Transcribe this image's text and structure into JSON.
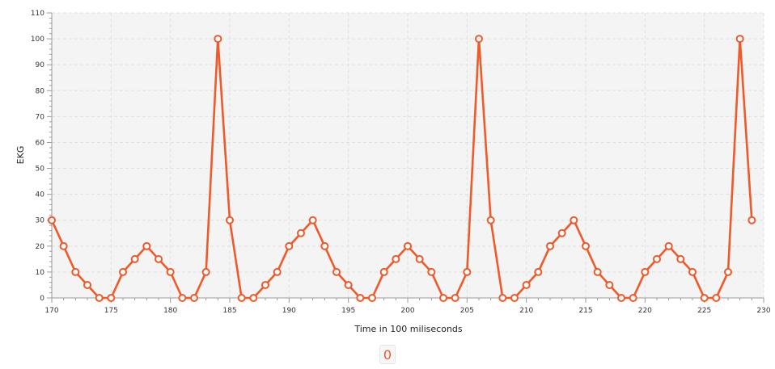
{
  "chart_data": {
    "type": "line",
    "xlabel": "Time in 100 miliseconds",
    "ylabel": "EKG",
    "xlim": [
      170,
      230
    ],
    "ylim": [
      0,
      110
    ],
    "x_ticks": [
      170,
      175,
      180,
      185,
      190,
      195,
      200,
      205,
      210,
      215,
      220,
      225,
      230
    ],
    "y_ticks": [
      0,
      10,
      20,
      30,
      40,
      50,
      60,
      70,
      80,
      90,
      100,
      110
    ],
    "grid": true,
    "legend": "bottom-center",
    "series": [
      {
        "color": "#f0592a",
        "x": [
          170,
          171,
          172,
          173,
          174,
          175,
          176,
          177,
          178,
          179,
          180,
          181,
          182,
          183,
          184,
          185,
          186,
          187,
          188,
          189,
          190,
          191,
          192,
          193,
          194,
          195,
          196,
          197,
          198,
          199,
          200,
          201,
          202,
          203,
          204,
          205,
          206,
          207,
          208,
          209,
          210,
          211,
          212,
          213,
          214,
          215,
          216,
          217,
          218,
          219,
          220,
          221,
          222,
          223,
          224,
          225,
          226,
          227,
          228,
          229
        ],
        "values": [
          30,
          20,
          10,
          5,
          0,
          0,
          10,
          15,
          20,
          15,
          10,
          0,
          0,
          10,
          100,
          30,
          0,
          0,
          5,
          10,
          20,
          25,
          30,
          20,
          10,
          5,
          0,
          0,
          10,
          15,
          20,
          15,
          10,
          0,
          0,
          10,
          100,
          30,
          0,
          0,
          5,
          10,
          20,
          25,
          30,
          20,
          10,
          5,
          0,
          0,
          10,
          15,
          20,
          15,
          10,
          0,
          0,
          10,
          100,
          30
        ]
      }
    ]
  },
  "legend_value": "0",
  "colors": {
    "plot_background": "#f4f4f4",
    "grid": "#e0e0e0",
    "series": "#f0592a"
  }
}
